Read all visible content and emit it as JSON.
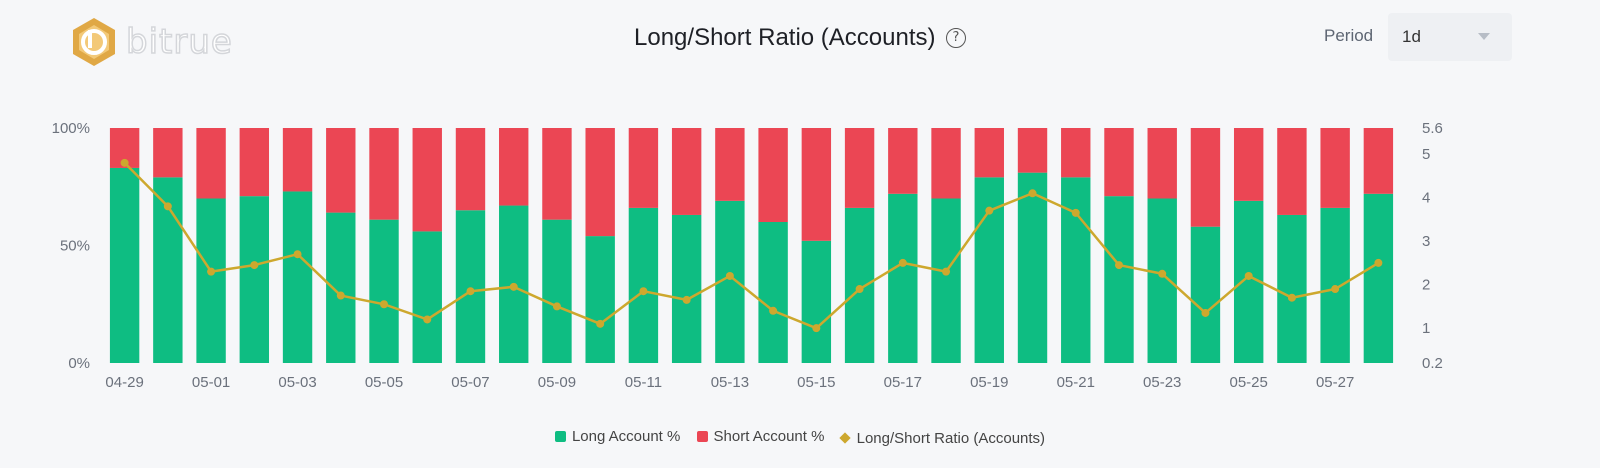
{
  "brand": {
    "name": "bitrue"
  },
  "header": {
    "title": "Long/Short Ratio (Accounts)",
    "help_icon": "question-circle-icon"
  },
  "controls": {
    "period_label": "Period",
    "period_value": "1d"
  },
  "colors": {
    "long": "#0ebd82",
    "short": "#eb4654",
    "ratio": "#cda82e",
    "logo": "#e0a845"
  },
  "chart_data": {
    "type": "bar",
    "stacked": true,
    "title": "Long/Short Ratio (Accounts)",
    "categories": [
      "04-29",
      "04-30",
      "05-01",
      "05-02",
      "05-03",
      "05-04",
      "05-05",
      "05-06",
      "05-07",
      "05-08",
      "05-09",
      "05-10",
      "05-11",
      "05-12",
      "05-13",
      "05-14",
      "05-15",
      "05-16",
      "05-17",
      "05-18",
      "05-19",
      "05-20",
      "05-21",
      "05-22",
      "05-23",
      "05-24",
      "05-25",
      "05-26",
      "05-27",
      "05-28"
    ],
    "x_tick_labels": [
      "04-29",
      "05-01",
      "05-03",
      "05-05",
      "05-07",
      "05-09",
      "05-11",
      "05-13",
      "05-15",
      "05-17",
      "05-19",
      "05-21",
      "05-23",
      "05-25",
      "05-27"
    ],
    "y_left": {
      "ticks": [
        "0%",
        "50%",
        "100%"
      ],
      "range": [
        0,
        100
      ]
    },
    "y_right": {
      "ticks": [
        "0.2",
        "1",
        "2",
        "3",
        "4",
        "5",
        "5.6"
      ],
      "range": [
        0.2,
        5.6
      ]
    },
    "series": [
      {
        "name": "Long Account %",
        "type": "bar",
        "axis": "left",
        "values": [
          83,
          79,
          70,
          71,
          73,
          64,
          61,
          56,
          65,
          67,
          61,
          54,
          66,
          63,
          69,
          60,
          52,
          66,
          72,
          70,
          79,
          81,
          79,
          71,
          70,
          58,
          69,
          63,
          66,
          72
        ]
      },
      {
        "name": "Short Account %",
        "type": "bar",
        "axis": "left",
        "values": [
          17,
          21,
          30,
          29,
          27,
          36,
          39,
          44,
          35,
          33,
          39,
          46,
          34,
          37,
          31,
          40,
          48,
          34,
          28,
          30,
          21,
          19,
          21,
          29,
          30,
          42,
          31,
          37,
          34,
          28
        ]
      },
      {
        "name": "Long/Short Ratio (Accounts)",
        "type": "line",
        "axis": "right",
        "values": [
          4.8,
          3.8,
          2.3,
          2.45,
          2.7,
          1.75,
          1.55,
          1.2,
          1.85,
          1.95,
          1.5,
          1.1,
          1.85,
          1.65,
          2.2,
          1.4,
          1.0,
          1.9,
          2.5,
          2.3,
          3.7,
          4.1,
          3.65,
          2.45,
          2.25,
          1.35,
          2.2,
          1.7,
          1.9,
          2.5
        ]
      }
    ],
    "legend": {
      "position": "bottom"
    },
    "grid": false
  }
}
